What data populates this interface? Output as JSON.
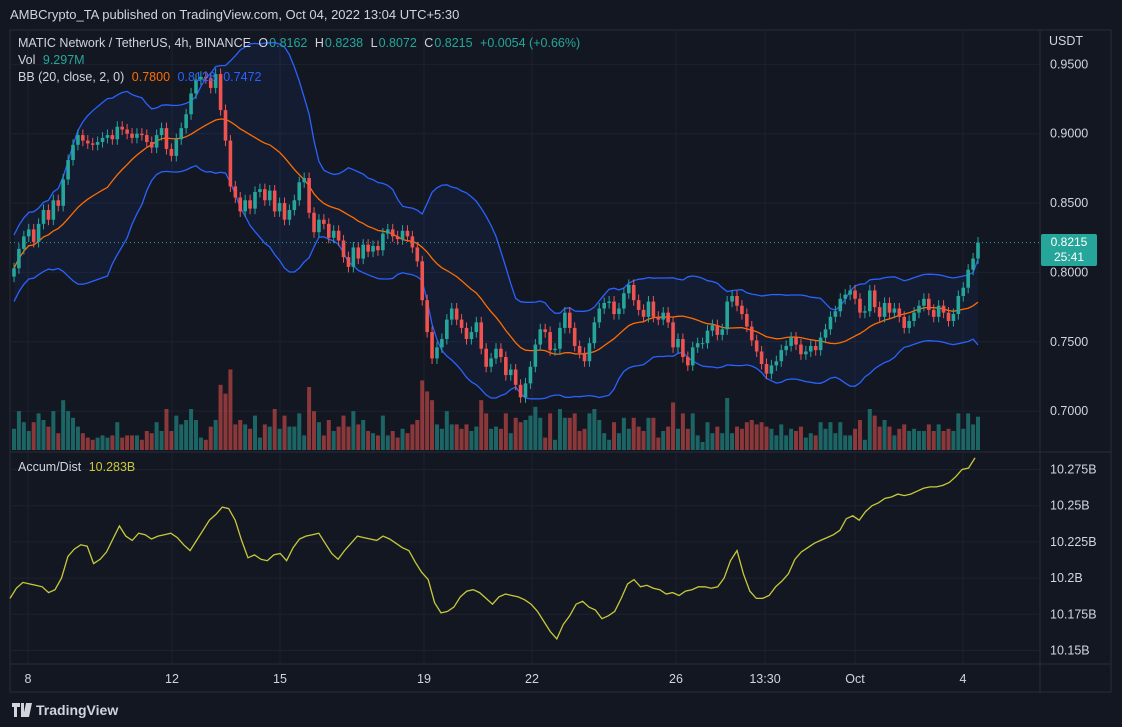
{
  "header": {
    "publisher": "AMBCrypto_TA published on TradingView.com, Oct 04, 2022 13:04 UTC+5:30"
  },
  "legend": {
    "symbol": "MATIC Network / TetherUS, 4h, BINANCE",
    "o_label": "O",
    "o": "0.8162",
    "h_label": "H",
    "h": "0.8238",
    "l_label": "L",
    "l": "0.8072",
    "c_label": "C",
    "c": "0.8215",
    "change": "+0.0054 (+0.66%)",
    "vol_label": "Vol",
    "vol": "9.297M",
    "bb_label": "BB (20, close, 2, 0)",
    "bb_mid": "0.7800",
    "bb_upper": "0.8128",
    "bb_lower": "0.7472",
    "ad_label": "Accum/Dist",
    "ad": "10.283B"
  },
  "price_tag": {
    "price": "0.8215",
    "countdown": "25:41"
  },
  "currency": "USDT",
  "branding": {
    "logo_text": "TradingView"
  },
  "colors": {
    "bg": "#131722",
    "up": "#26a69a",
    "down": "#ef5350",
    "bb_band": "#2962ff",
    "bb_mid": "#ff6d00",
    "ad": "#c7c93a",
    "grid": "#1e2230"
  },
  "chart_data": [
    {
      "type": "candlestick",
      "title": "MATIC Network / TetherUS, 4h, BINANCE",
      "y_ticks": [
        "0.9500",
        "0.9000",
        "0.8500",
        "0.8000",
        "0.7500",
        "0.7000"
      ],
      "ylim": [
        0.672,
        0.956
      ],
      "x_ticks": [
        "8",
        "12",
        "15",
        "19",
        "22",
        "26",
        "13:30",
        "Oct",
        "4"
      ],
      "close": [
        0.803,
        0.817,
        0.826,
        0.831,
        0.822,
        0.835,
        0.845,
        0.838,
        0.852,
        0.848,
        0.867,
        0.881,
        0.892,
        0.899,
        0.895,
        0.893,
        0.892,
        0.894,
        0.897,
        0.899,
        0.896,
        0.905,
        0.903,
        0.9,
        0.897,
        0.9,
        0.899,
        0.894,
        0.89,
        0.899,
        0.904,
        0.889,
        0.884,
        0.896,
        0.904,
        0.914,
        0.929,
        0.939,
        0.941,
        0.94,
        0.933,
        0.943,
        0.917,
        0.895,
        0.862,
        0.854,
        0.844,
        0.852,
        0.846,
        0.858,
        0.86,
        0.852,
        0.859,
        0.844,
        0.85,
        0.838,
        0.845,
        0.852,
        0.865,
        0.868,
        0.843,
        0.829,
        0.838,
        0.835,
        0.825,
        0.83,
        0.823,
        0.811,
        0.804,
        0.818,
        0.81,
        0.82,
        0.815,
        0.819,
        0.816,
        0.828,
        0.831,
        0.826,
        0.824,
        0.83,
        0.826,
        0.818,
        0.808,
        0.78,
        0.757,
        0.738,
        0.746,
        0.752,
        0.766,
        0.774,
        0.766,
        0.76,
        0.752,
        0.757,
        0.764,
        0.745,
        0.732,
        0.738,
        0.745,
        0.739,
        0.726,
        0.73,
        0.719,
        0.71,
        0.72,
        0.732,
        0.748,
        0.759,
        0.757,
        0.744,
        0.745,
        0.76,
        0.771,
        0.76,
        0.747,
        0.742,
        0.736,
        0.749,
        0.764,
        0.774,
        0.778,
        0.779,
        0.77,
        0.774,
        0.785,
        0.791,
        0.78,
        0.773,
        0.768,
        0.779,
        0.768,
        0.766,
        0.771,
        0.764,
        0.746,
        0.752,
        0.739,
        0.733,
        0.746,
        0.749,
        0.749,
        0.758,
        0.762,
        0.755,
        0.759,
        0.779,
        0.783,
        0.776,
        0.77,
        0.761,
        0.751,
        0.743,
        0.734,
        0.727,
        0.733,
        0.736,
        0.744,
        0.747,
        0.753,
        0.748,
        0.741,
        0.743,
        0.747,
        0.744,
        0.753,
        0.759,
        0.768,
        0.772,
        0.781,
        0.784,
        0.787,
        0.781,
        0.771,
        0.772,
        0.787,
        0.775,
        0.768,
        0.778,
        0.771,
        0.774,
        0.768,
        0.76,
        0.765,
        0.771,
        0.776,
        0.781,
        0.773,
        0.768,
        0.776,
        0.771,
        0.765,
        0.77,
        0.783,
        0.789,
        0.802,
        0.81,
        0.8215
      ],
      "bb_mid_end": 0.78,
      "bb_upper_end": 0.8128,
      "bb_lower_end": 0.7472
    },
    {
      "type": "line",
      "title": "Accum/Dist",
      "series": [
        {
          "name": "Accum/Dist",
          "last": 10.283
        }
      ],
      "y_ticks": [
        "10.275B",
        "10.25B",
        "10.225B",
        "10.2B",
        "10.175B",
        "10.15B"
      ],
      "ylim": [
        10.14,
        10.285
      ],
      "values": [
        10.186,
        10.193,
        10.197,
        10.196,
        10.195,
        10.194,
        10.19,
        10.192,
        10.2,
        10.215,
        10.22,
        10.223,
        10.222,
        10.21,
        10.213,
        10.218,
        10.227,
        10.236,
        10.229,
        10.226,
        10.231,
        10.23,
        10.227,
        10.229,
        10.23,
        10.231,
        10.228,
        10.223,
        10.219,
        10.226,
        10.233,
        10.24,
        10.244,
        10.249,
        10.248,
        10.24,
        10.226,
        10.214,
        10.216,
        10.213,
        10.212,
        10.216,
        10.217,
        10.212,
        10.221,
        10.227,
        10.229,
        10.23,
        10.231,
        10.224,
        10.217,
        10.213,
        10.219,
        10.224,
        10.229,
        10.228,
        10.227,
        10.226,
        10.229,
        10.227,
        10.224,
        10.221,
        10.219,
        10.211,
        10.204,
        10.199,
        10.183,
        10.176,
        10.177,
        10.18,
        10.187,
        10.191,
        10.192,
        10.19,
        10.186,
        10.182,
        10.187,
        10.189,
        10.188,
        10.187,
        10.185,
        10.182,
        10.177,
        10.17,
        10.163,
        10.158,
        10.168,
        10.174,
        10.182,
        10.184,
        10.18,
        10.178,
        10.172,
        10.174,
        10.177,
        10.186,
        10.196,
        10.199,
        10.194,
        10.195,
        10.193,
        10.192,
        10.189,
        10.19,
        10.188,
        10.191,
        10.192,
        10.194,
        10.194,
        10.193,
        10.194,
        10.2,
        10.212,
        10.219,
        10.203,
        10.191,
        10.186,
        10.186,
        10.188,
        10.194,
        10.198,
        10.203,
        10.213,
        10.218,
        10.221,
        10.224,
        10.226,
        10.228,
        10.23,
        10.233,
        10.241,
        10.243,
        10.24,
        10.246,
        10.25,
        10.252,
        10.255,
        10.256,
        10.258,
        10.257,
        10.258,
        10.26,
        10.262,
        10.263,
        10.263,
        10.264,
        10.266,
        10.27,
        10.275,
        10.276,
        10.283
      ]
    }
  ]
}
